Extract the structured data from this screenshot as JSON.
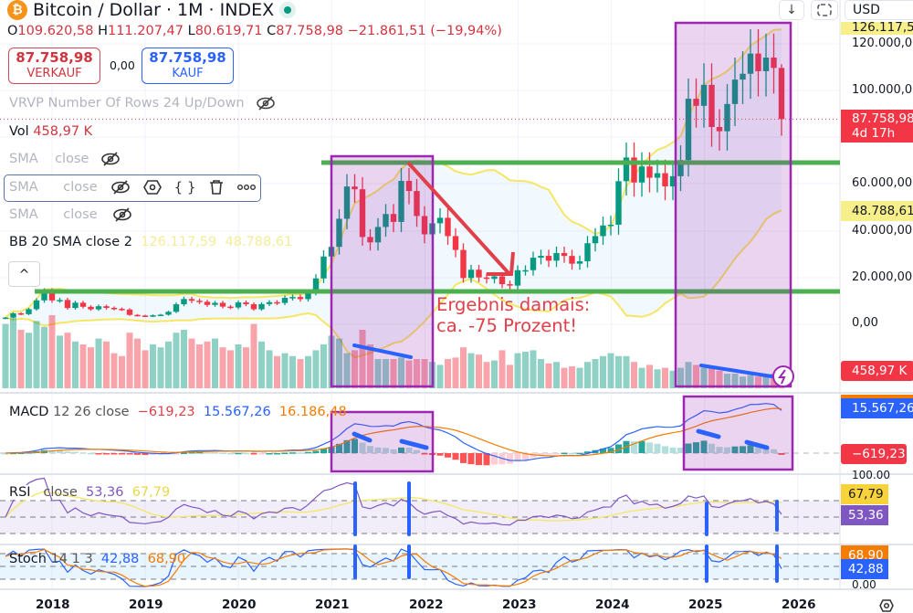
{
  "header": {
    "symbol": "Bitcoin / Dollar · 1M · INDEX",
    "coin_glyph": "₿",
    "ohlc": {
      "o_label": "O",
      "o": "109.620,58",
      "h_label": "H",
      "h": "111.207,47",
      "l_label": "L",
      "l": "80.619,71",
      "c_label": "C",
      "c": "87.758,98",
      "change": "−21.861,51 (−19,94%)"
    }
  },
  "trade": {
    "sell_price": "87.758,98",
    "sell_label": "VERKAUF",
    "spread": "0,00",
    "buy_price": "87.758,98",
    "buy_label": "KAUF"
  },
  "legends": {
    "vrvp": "VRVP Number Of Rows 24 Up/Down",
    "vol_label": "Vol",
    "vol_value": "458,97 K",
    "sma": "SMA",
    "close": "close",
    "bb_label": "BB 20 SMA close 2",
    "bb_upper": "126.117,59",
    "bb_lower": "48.788,61",
    "macd_label": "MACD",
    "macd_params": "12 26 close",
    "macd_hist": "−619,23",
    "macd_line": "15.567,26",
    "macd_signal": "16.186,48",
    "rsi_label": "RSI",
    "rsi_params": "close",
    "rsi_value": "53,36",
    "rsi_ma": "67,79",
    "stoch_label": "Stoch",
    "stoch_params": "14 1 3",
    "stoch_k": "42,88",
    "stoch_d": "68,90"
  },
  "toolbar": {
    "currency": "USD",
    "down_glyph": "↓",
    "collapse_glyph": "^"
  },
  "price_axis": {
    "ticks": [
      "120.000,00",
      "100.000,00",
      "60.000,00",
      "40.000,00",
      "20.000,00",
      "0,00"
    ],
    "tags": {
      "bb_upper": "126.117,59",
      "price": "87.758,98",
      "countdown": "4d 17h",
      "bb_lower": "48.788,61",
      "volume": "458,97 K",
      "macd_line": "15.567,26",
      "macd_hist": "−619,23",
      "rsi_top": "100,00",
      "rsi_ma": "67,79",
      "rsi": "53,36",
      "stoch_d": "68,90",
      "stoch_k": "42,88",
      "stoch_bottom": "0,00"
    }
  },
  "time_axis": [
    "2018",
    "2019",
    "2020",
    "2021",
    "2022",
    "2023",
    "2024",
    "2025",
    "2026"
  ],
  "annotation": {
    "line1": "Ergebnis damais:",
    "line2": "ca. -75 Prozent!"
  },
  "colors": {
    "up": "#089981",
    "down": "#f23645",
    "bb": "#f5e663",
    "support": "#4caf50",
    "box": "#9c27b0",
    "arrow": "#e0404a",
    "divergence": "#2962ff"
  },
  "chart_data": {
    "type": "candlestick",
    "interval": "1M",
    "start": "2017-07",
    "first_open": 2400,
    "close": [
      2875,
      4703,
      4338,
      6468,
      10233,
      14156,
      10221,
      10397,
      6973,
      9240,
      7494,
      6404,
      7730,
      7025,
      6626,
      6318,
      4017,
      3742,
      3457,
      3854,
      4105,
      5350,
      8574,
      10817,
      10085,
      9630,
      8293,
      9199,
      7569,
      7193,
      9350,
      8599,
      6438,
      8658,
      9461,
      9137,
      11323,
      11680,
      10784,
      13781,
      19625,
      29002,
      33114,
      45137,
      58918,
      57750,
      37332,
      35041,
      41626,
      47166,
      43791,
      61318,
      57005,
      46306,
      38483,
      43193,
      45538,
      37714,
      31792,
      19785,
      23336,
      20050,
      19431,
      20496,
      17168,
      16548,
      23139,
      23147,
      28478,
      29268,
      27219,
      30477,
      29230,
      25931,
      26967,
      34667,
      37712,
      42265,
      42582,
      61198,
      71333,
      60636,
      67491,
      62678,
      64619,
      58969,
      63329,
      70215,
      96449,
      93429,
      102405,
      84373,
      82549,
      94207,
      104638,
      107135,
      115758,
      108236,
      114049,
      109620,
      87759
    ],
    "last_candle": {
      "open": 109620.58,
      "high": 111207.47,
      "low": 80619.71,
      "close": 87758.98
    },
    "volume_k": [
      2200,
      2400,
      2000,
      1900,
      2300,
      2100,
      2500,
      1800,
      1900,
      1600,
      1500,
      1400,
      1700,
      1600,
      1200,
      1100,
      1900,
      1700,
      1300,
      1500,
      1400,
      1600,
      1900,
      2000,
      1700,
      1500,
      1600,
      1700,
      1400,
      1300,
      1500,
      1400,
      2200,
      1600,
      1300,
      1100,
      1200,
      1100,
      1000,
      1100,
      1300,
      1500,
      1800,
      1700,
      1200,
      1300,
      2000,
      1500,
      1000,
      1000,
      1000,
      1050,
      950,
      1000,
      1000,
      900,
      800,
      1000,
      1050,
      1400,
      1200,
      1150,
      900,
      950,
      1300,
      800,
      1200,
      1250,
      1300,
      1000,
      850,
      900,
      700,
      750,
      700,
      900,
      1000,
      1100,
      1200,
      1100,
      1100,
      900,
      700,
      800,
      650,
      700,
      600,
      700,
      900,
      800,
      700,
      700,
      600,
      500,
      500,
      400,
      450,
      400,
      400,
      500,
      459
    ],
    "support_levels": [
      69000,
      14000
    ],
    "price_range": [
      0,
      130000
    ],
    "indicators": [
      "Volume",
      "BB 20 SMA close 2",
      "MACD 12 26 close",
      "RSI close",
      "Stoch 14 1 3"
    ]
  }
}
